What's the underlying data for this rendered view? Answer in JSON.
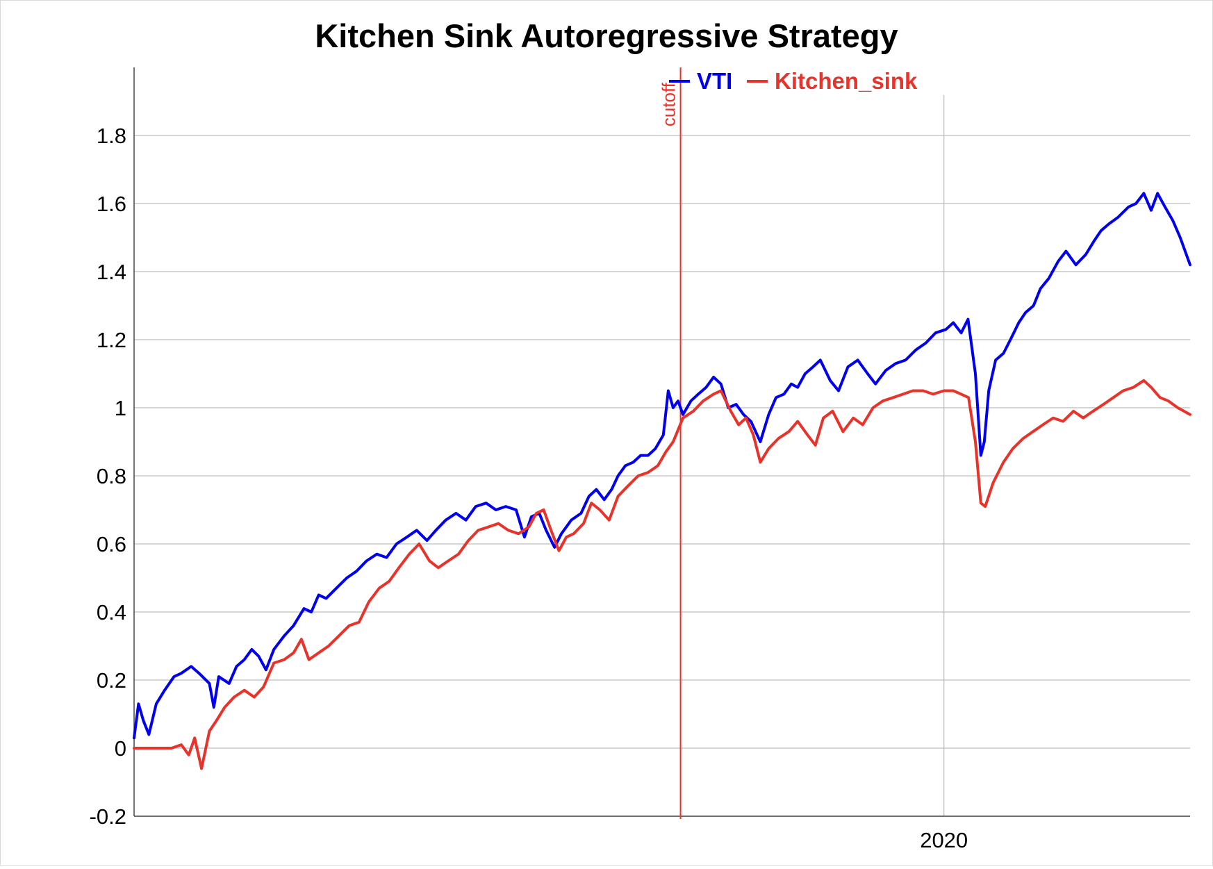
{
  "chart_data": {
    "type": "line",
    "title": "Kitchen Sink Autoregressive Strategy",
    "xlabel": "",
    "ylabel": "",
    "x_range": [
      "2015-07-01",
      "2021-05-15"
    ],
    "ylim": [
      -0.2,
      2.0
    ],
    "y_ticks": [
      -0.2,
      0,
      0.2,
      0.4,
      0.6,
      0.8,
      1,
      1.2,
      1.4,
      1.6,
      1.8
    ],
    "y_tick_labels": [
      "-0.2",
      "0",
      "0.2",
      "0.4",
      "0.6",
      "0.8",
      "1",
      "1.2",
      "1.4",
      "1.6",
      "1.8"
    ],
    "x_ticks": [
      "2020-01-01"
    ],
    "x_tick_labels": [
      "2020"
    ],
    "grid": true,
    "legend": "top-center",
    "annotations": [
      {
        "type": "vline",
        "x": "2018-07-15",
        "label": "cutoff",
        "color": "#e8332a"
      }
    ],
    "series": [
      {
        "name": "VTI",
        "color": "#0000ee",
        "points": [
          [
            "2015-07-01",
            0.03
          ],
          [
            "2015-07-10",
            0.13
          ],
          [
            "2015-07-20",
            0.08
          ],
          [
            "2015-07-31",
            0.04
          ],
          [
            "2015-08-15",
            0.13
          ],
          [
            "2015-09-01",
            0.17
          ],
          [
            "2015-09-20",
            0.21
          ],
          [
            "2015-10-05",
            0.22
          ],
          [
            "2015-10-25",
            0.24
          ],
          [
            "2015-11-10",
            0.22
          ],
          [
            "2015-12-01",
            0.19
          ],
          [
            "2015-12-10",
            0.12
          ],
          [
            "2015-12-20",
            0.21
          ],
          [
            "2016-01-10",
            0.19
          ],
          [
            "2016-01-25",
            0.24
          ],
          [
            "2016-02-10",
            0.26
          ],
          [
            "2016-02-25",
            0.29
          ],
          [
            "2016-03-10",
            0.27
          ],
          [
            "2016-03-25",
            0.23
          ],
          [
            "2016-04-10",
            0.29
          ],
          [
            "2016-05-01",
            0.33
          ],
          [
            "2016-05-20",
            0.36
          ],
          [
            "2016-06-10",
            0.41
          ],
          [
            "2016-06-25",
            0.4
          ],
          [
            "2016-07-10",
            0.45
          ],
          [
            "2016-07-25",
            0.44
          ],
          [
            "2016-08-15",
            0.47
          ],
          [
            "2016-09-05",
            0.5
          ],
          [
            "2016-09-25",
            0.52
          ],
          [
            "2016-10-15",
            0.55
          ],
          [
            "2016-11-05",
            0.57
          ],
          [
            "2016-11-25",
            0.56
          ],
          [
            "2016-12-15",
            0.6
          ],
          [
            "2017-01-05",
            0.62
          ],
          [
            "2017-01-25",
            0.64
          ],
          [
            "2017-02-15",
            0.61
          ],
          [
            "2017-03-05",
            0.64
          ],
          [
            "2017-03-25",
            0.67
          ],
          [
            "2017-04-15",
            0.69
          ],
          [
            "2017-05-05",
            0.67
          ],
          [
            "2017-05-25",
            0.71
          ],
          [
            "2017-06-15",
            0.72
          ],
          [
            "2017-07-05",
            0.7
          ],
          [
            "2017-07-25",
            0.71
          ],
          [
            "2017-08-15",
            0.7
          ],
          [
            "2017-09-01",
            0.62
          ],
          [
            "2017-09-15",
            0.68
          ],
          [
            "2017-10-01",
            0.69
          ],
          [
            "2017-10-15",
            0.64
          ],
          [
            "2017-11-01",
            0.59
          ],
          [
            "2017-11-15",
            0.63
          ],
          [
            "2017-12-05",
            0.67
          ],
          [
            "2017-12-25",
            0.69
          ],
          [
            "2018-01-10",
            0.74
          ],
          [
            "2018-01-25",
            0.76
          ],
          [
            "2018-02-10",
            0.73
          ],
          [
            "2018-02-25",
            0.76
          ],
          [
            "2018-03-10",
            0.8
          ],
          [
            "2018-03-25",
            0.83
          ],
          [
            "2018-04-10",
            0.84
          ],
          [
            "2018-04-25",
            0.86
          ],
          [
            "2018-05-10",
            0.86
          ],
          [
            "2018-05-25",
            0.88
          ],
          [
            "2018-06-10",
            0.92
          ],
          [
            "2018-06-20",
            1.05
          ],
          [
            "2018-06-30",
            1.0
          ],
          [
            "2018-07-10",
            1.02
          ],
          [
            "2018-07-20",
            0.98
          ],
          [
            "2018-08-05",
            1.02
          ],
          [
            "2018-08-20",
            1.04
          ],
          [
            "2018-09-05",
            1.06
          ],
          [
            "2018-09-20",
            1.09
          ],
          [
            "2018-10-05",
            1.07
          ],
          [
            "2018-10-20",
            1.0
          ],
          [
            "2018-11-05",
            1.01
          ],
          [
            "2018-11-20",
            0.98
          ],
          [
            "2018-12-05",
            0.96
          ],
          [
            "2018-12-24",
            0.9
          ],
          [
            "2019-01-10",
            0.98
          ],
          [
            "2019-01-25",
            1.03
          ],
          [
            "2019-02-10",
            1.04
          ],
          [
            "2019-02-25",
            1.07
          ],
          [
            "2019-03-10",
            1.06
          ],
          [
            "2019-03-25",
            1.1
          ],
          [
            "2019-04-10",
            1.12
          ],
          [
            "2019-04-25",
            1.14
          ],
          [
            "2019-05-15",
            1.08
          ],
          [
            "2019-06-01",
            1.05
          ],
          [
            "2019-06-20",
            1.12
          ],
          [
            "2019-07-10",
            1.14
          ],
          [
            "2019-07-30",
            1.1
          ],
          [
            "2019-08-15",
            1.07
          ],
          [
            "2019-09-05",
            1.11
          ],
          [
            "2019-09-25",
            1.13
          ],
          [
            "2019-10-15",
            1.14
          ],
          [
            "2019-11-05",
            1.17
          ],
          [
            "2019-11-25",
            1.19
          ],
          [
            "2019-12-15",
            1.22
          ],
          [
            "2020-01-05",
            1.23
          ],
          [
            "2020-01-20",
            1.25
          ],
          [
            "2020-02-05",
            1.22
          ],
          [
            "2020-02-19",
            1.26
          ],
          [
            "2020-03-05",
            1.1
          ],
          [
            "2020-03-16",
            0.86
          ],
          [
            "2020-03-23",
            0.9
          ],
          [
            "2020-04-01",
            1.05
          ],
          [
            "2020-04-15",
            1.14
          ],
          [
            "2020-05-01",
            1.16
          ],
          [
            "2020-05-15",
            1.2
          ],
          [
            "2020-06-01",
            1.25
          ],
          [
            "2020-06-15",
            1.28
          ],
          [
            "2020-07-01",
            1.3
          ],
          [
            "2020-07-15",
            1.35
          ],
          [
            "2020-08-01",
            1.38
          ],
          [
            "2020-08-20",
            1.43
          ],
          [
            "2020-09-05",
            1.46
          ],
          [
            "2020-09-25",
            1.42
          ],
          [
            "2020-10-15",
            1.45
          ],
          [
            "2020-11-01",
            1.49
          ],
          [
            "2020-11-15",
            1.52
          ],
          [
            "2020-12-01",
            1.54
          ],
          [
            "2020-12-20",
            1.56
          ],
          [
            "2021-01-10",
            1.59
          ],
          [
            "2021-01-25",
            1.6
          ],
          [
            "2021-02-10",
            1.63
          ],
          [
            "2021-02-25",
            1.58
          ],
          [
            "2021-03-10",
            1.63
          ],
          [
            "2021-03-25",
            1.59
          ],
          [
            "2021-04-10",
            1.55
          ],
          [
            "2021-04-25",
            1.5
          ],
          [
            "2021-05-15",
            1.42
          ]
        ]
      },
      {
        "name": "Kitchen_sink",
        "color": "#e8332a",
        "points": [
          [
            "2015-07-01",
            0.0
          ],
          [
            "2015-09-15",
            0.0
          ],
          [
            "2015-10-05",
            0.01
          ],
          [
            "2015-10-20",
            -0.02
          ],
          [
            "2015-11-01",
            0.03
          ],
          [
            "2015-11-15",
            -0.06
          ],
          [
            "2015-12-01",
            0.05
          ],
          [
            "2015-12-15",
            0.08
          ],
          [
            "2016-01-01",
            0.12
          ],
          [
            "2016-01-20",
            0.15
          ],
          [
            "2016-02-10",
            0.17
          ],
          [
            "2016-03-01",
            0.15
          ],
          [
            "2016-03-20",
            0.18
          ],
          [
            "2016-04-10",
            0.25
          ],
          [
            "2016-05-01",
            0.26
          ],
          [
            "2016-05-20",
            0.28
          ],
          [
            "2016-06-05",
            0.32
          ],
          [
            "2016-06-20",
            0.26
          ],
          [
            "2016-07-10",
            0.28
          ],
          [
            "2016-07-30",
            0.3
          ],
          [
            "2016-08-20",
            0.33
          ],
          [
            "2016-09-10",
            0.36
          ],
          [
            "2016-09-30",
            0.37
          ],
          [
            "2016-10-20",
            0.43
          ],
          [
            "2016-11-10",
            0.47
          ],
          [
            "2016-11-30",
            0.49
          ],
          [
            "2016-12-20",
            0.53
          ],
          [
            "2017-01-10",
            0.57
          ],
          [
            "2017-01-30",
            0.6
          ],
          [
            "2017-02-20",
            0.55
          ],
          [
            "2017-03-10",
            0.53
          ],
          [
            "2017-03-30",
            0.55
          ],
          [
            "2017-04-20",
            0.57
          ],
          [
            "2017-05-10",
            0.61
          ],
          [
            "2017-05-30",
            0.64
          ],
          [
            "2017-06-20",
            0.65
          ],
          [
            "2017-07-10",
            0.66
          ],
          [
            "2017-07-30",
            0.64
          ],
          [
            "2017-08-20",
            0.63
          ],
          [
            "2017-09-10",
            0.65
          ],
          [
            "2017-09-25",
            0.69
          ],
          [
            "2017-10-10",
            0.7
          ],
          [
            "2017-10-25",
            0.64
          ],
          [
            "2017-11-10",
            0.58
          ],
          [
            "2017-11-25",
            0.62
          ],
          [
            "2017-12-10",
            0.63
          ],
          [
            "2017-12-30",
            0.66
          ],
          [
            "2018-01-15",
            0.72
          ],
          [
            "2018-02-01",
            0.7
          ],
          [
            "2018-02-20",
            0.67
          ],
          [
            "2018-03-10",
            0.74
          ],
          [
            "2018-03-30",
            0.77
          ],
          [
            "2018-04-20",
            0.8
          ],
          [
            "2018-05-10",
            0.81
          ],
          [
            "2018-05-30",
            0.83
          ],
          [
            "2018-06-15",
            0.87
          ],
          [
            "2018-06-30",
            0.9
          ],
          [
            "2018-07-20",
            0.97
          ],
          [
            "2018-08-10",
            0.99
          ],
          [
            "2018-08-30",
            1.02
          ],
          [
            "2018-09-20",
            1.04
          ],
          [
            "2018-10-05",
            1.05
          ],
          [
            "2018-10-25",
            0.99
          ],
          [
            "2018-11-10",
            0.95
          ],
          [
            "2018-11-25",
            0.97
          ],
          [
            "2018-12-10",
            0.92
          ],
          [
            "2018-12-24",
            0.84
          ],
          [
            "2019-01-10",
            0.88
          ],
          [
            "2019-01-30",
            0.91
          ],
          [
            "2019-02-20",
            0.93
          ],
          [
            "2019-03-10",
            0.96
          ],
          [
            "2019-03-30",
            0.92
          ],
          [
            "2019-04-15",
            0.89
          ],
          [
            "2019-05-01",
            0.97
          ],
          [
            "2019-05-20",
            0.99
          ],
          [
            "2019-06-10",
            0.93
          ],
          [
            "2019-07-01",
            0.97
          ],
          [
            "2019-07-20",
            0.95
          ],
          [
            "2019-08-10",
            1.0
          ],
          [
            "2019-08-30",
            1.02
          ],
          [
            "2019-09-20",
            1.03
          ],
          [
            "2019-10-10",
            1.04
          ],
          [
            "2019-10-30",
            1.05
          ],
          [
            "2019-11-20",
            1.05
          ],
          [
            "2019-12-10",
            1.04
          ],
          [
            "2020-01-01",
            1.05
          ],
          [
            "2020-01-20",
            1.05
          ],
          [
            "2020-02-05",
            1.04
          ],
          [
            "2020-02-20",
            1.03
          ],
          [
            "2020-03-05",
            0.9
          ],
          [
            "2020-03-16",
            0.72
          ],
          [
            "2020-03-25",
            0.71
          ],
          [
            "2020-04-10",
            0.78
          ],
          [
            "2020-05-01",
            0.84
          ],
          [
            "2020-05-20",
            0.88
          ],
          [
            "2020-06-10",
            0.91
          ],
          [
            "2020-06-30",
            0.93
          ],
          [
            "2020-07-20",
            0.95
          ],
          [
            "2020-08-10",
            0.97
          ],
          [
            "2020-08-30",
            0.96
          ],
          [
            "2020-09-20",
            0.99
          ],
          [
            "2020-10-10",
            0.97
          ],
          [
            "2020-10-30",
            0.99
          ],
          [
            "2020-11-20",
            1.01
          ],
          [
            "2020-12-10",
            1.03
          ],
          [
            "2020-12-30",
            1.05
          ],
          [
            "2021-01-20",
            1.06
          ],
          [
            "2021-02-10",
            1.08
          ],
          [
            "2021-02-25",
            1.06
          ],
          [
            "2021-03-15",
            1.03
          ],
          [
            "2021-04-01",
            1.02
          ],
          [
            "2021-04-20",
            1.0
          ],
          [
            "2021-05-15",
            0.98
          ]
        ]
      }
    ]
  }
}
